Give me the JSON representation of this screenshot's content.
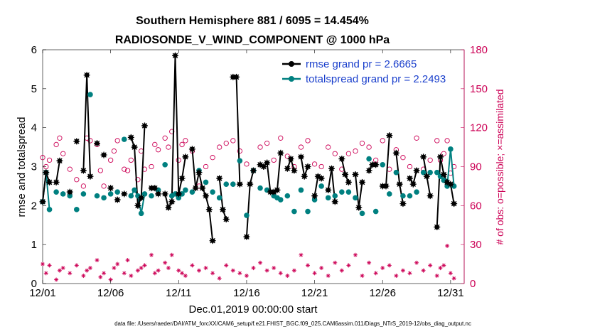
{
  "chart_data": {
    "type": "scatter",
    "title_line1": "Southern Hemisphere 881 / 6095 = 14.454%",
    "title_line2": "RADIOSONDE_V_WIND_COMPONENT @ 1000 hPa",
    "xlabel": "Dec.01,2019 00:00:00 start",
    "ylabel_left": "rmse and totalspread",
    "ylabel_right": "# of obs: o=possible; ×=assimilated",
    "footer": "data file: /Users/raeder/DAI/ATM_forcXX/CAM6_setup/f.e21.FHIST_BGC.f09_025.CAM6assim.011/Diags_NTrS_2019-12/obs_diag_output.nc",
    "xlim": [
      1,
      32
    ],
    "ylim_left": [
      0,
      6
    ],
    "ylim_right": [
      0,
      180
    ],
    "xtick_values": [
      1,
      6,
      11,
      16,
      21,
      26,
      31
    ],
    "xtick_labels": [
      "12/01",
      "12/06",
      "12/11",
      "12/16",
      "12/21",
      "12/26",
      "12/31"
    ],
    "ytick_left": [
      "0",
      "1",
      "2",
      "3",
      "4",
      "5",
      "6"
    ],
    "ytick_right": [
      "0",
      "30",
      "60",
      "90",
      "120",
      "150",
      "180"
    ],
    "legend": [
      {
        "name": "rmse grand pr = 2.6665",
        "color": "#000000"
      },
      {
        "name": "totalspread grand pr = 2.2493",
        "color": "#008080"
      }
    ],
    "series": [
      {
        "name": "rmse",
        "color": "#000000",
        "x": [
          1.0,
          1.25,
          1.5,
          2.0,
          2.25,
          3.0,
          3.5,
          4.0,
          4.25,
          4.5,
          5.0,
          5.5,
          6.0,
          6.5,
          7.0,
          7.5,
          7.75,
          8.0,
          8.25,
          8.5,
          9.0,
          9.25,
          9.5,
          10.0,
          10.25,
          10.5,
          10.75,
          11.0,
          11.25,
          11.5,
          12.0,
          12.25,
          12.5,
          12.75,
          13.0,
          13.25,
          13.5,
          14.0,
          14.25,
          14.5,
          15.0,
          15.25,
          15.5,
          16.0,
          16.25,
          16.5,
          17.0,
          17.25,
          17.5,
          17.75,
          18.0,
          18.25,
          18.5,
          19.0,
          19.25,
          19.5,
          20.0,
          20.25,
          20.5,
          21.0,
          21.25,
          21.5,
          22.0,
          22.25,
          22.5,
          23.0,
          23.25,
          23.5,
          24.0,
          24.25,
          24.5,
          25.0,
          25.25,
          25.5,
          26.0,
          26.25,
          26.5,
          27.0,
          27.25,
          27.5,
          28.0,
          28.25,
          28.5,
          29.0,
          29.25,
          29.5,
          30.0,
          30.25,
          30.5,
          30.75,
          31.0,
          31.25
        ],
        "y": [
          2.1,
          2.85,
          2.6,
          2.6,
          3.15,
          2.35,
          3.65,
          2.9,
          5.35,
          2.75,
          3.6,
          3.3,
          2.45,
          2.15,
          2.3,
          3.75,
          3.5,
          2.0,
          2.2,
          4.05,
          2.45,
          2.45,
          2.3,
          2.3,
          1.95,
          2.1,
          5.85,
          2.3,
          2.7,
          3.25,
          3.45,
          2.45,
          2.85,
          2.45,
          2.25,
          1.9,
          1.1,
          2.7,
          1.9,
          1.65,
          5.3,
          5.3,
          2.55,
          1.2,
          2.55,
          2.9,
          3.05,
          3.0,
          3.1,
          2.35,
          2.35,
          2.4,
          3.35,
          2.95,
          3.2,
          2.9,
          3.25,
          2.75,
          3.0,
          2.25,
          2.75,
          2.7,
          2.4,
          2.95,
          2.1,
          3.2,
          2.8,
          2.6,
          2.8,
          1.95,
          2.6,
          2.9,
          3.05,
          3.05,
          2.5,
          2.5,
          3.8,
          3.35,
          2.55,
          2.05,
          2.7,
          2.55,
          2.9,
          3.25,
          2.75,
          2.25,
          1.45,
          3.25,
          2.8,
          2.6,
          2.55,
          2.05
        ]
      },
      {
        "name": "totalspread",
        "color": "#008080",
        "x": [
          1.0,
          1.25,
          1.5,
          2.0,
          2.5,
          3.0,
          3.5,
          4.0,
          4.5,
          5.0,
          5.5,
          6.0,
          6.5,
          7.0,
          7.5,
          7.75,
          8.0,
          8.25,
          8.5,
          9.0,
          9.5,
          10.0,
          10.5,
          10.75,
          11.0,
          11.25,
          11.5,
          12.0,
          12.5,
          13.0,
          13.5,
          14.0,
          14.5,
          15.0,
          15.5,
          16.0,
          16.5,
          17.0,
          17.5,
          18.0,
          18.25,
          18.5,
          19.0,
          19.5,
          20.0,
          20.5,
          21.0,
          21.5,
          22.0,
          22.5,
          23.0,
          23.5,
          24.0,
          24.5,
          25.0,
          25.5,
          26.0,
          26.5,
          27.0,
          27.5,
          28.0,
          28.5,
          29.0,
          29.5,
          30.0,
          30.25,
          30.5,
          30.75,
          31.0,
          31.25
        ],
        "y": [
          2.1,
          2.85,
          1.9,
          2.35,
          2.3,
          2.25,
          1.9,
          2.3,
          4.85,
          2.25,
          2.2,
          2.3,
          2.35,
          3.7,
          2.25,
          2.4,
          2.25,
          1.8,
          2.3,
          2.25,
          2.4,
          3.05,
          2.25,
          2.3,
          2.2,
          2.3,
          2.4,
          2.35,
          2.9,
          2.6,
          2.35,
          2.2,
          2.55,
          2.55,
          3.15,
          1.75,
          2.9,
          2.45,
          2.4,
          2.25,
          2.2,
          2.15,
          2.25,
          1.85,
          2.4,
          1.85,
          2.15,
          2.5,
          2.2,
          2.25,
          2.35,
          2.35,
          2.2,
          1.8,
          3.2,
          1.85,
          3.05,
          2.3,
          2.85,
          2.25,
          2.25,
          2.35,
          2.85,
          2.85,
          2.85,
          2.75,
          2.65,
          2.5,
          3.45,
          2.5
        ]
      },
      {
        "name": "obs possible",
        "color": "#cc0055",
        "axis": "right",
        "x": [
          1.0,
          1.25,
          1.5,
          2.0,
          2.25,
          2.5,
          3.0,
          3.5,
          4.0,
          4.25,
          4.5,
          5.0,
          5.25,
          5.5,
          6.0,
          6.25,
          6.5,
          7.0,
          7.25,
          7.5,
          8.0,
          8.25,
          8.5,
          9.0,
          9.25,
          9.5,
          10.0,
          10.25,
          10.5,
          11.0,
          11.25,
          11.5,
          12.0,
          12.5,
          13.0,
          13.5,
          14.0,
          14.5,
          15.0,
          15.5,
          16.0,
          16.5,
          17.0,
          17.5,
          18.0,
          18.5,
          19.0,
          19.5,
          20.0,
          20.5,
          21.0,
          21.5,
          22.0,
          22.5,
          23.0,
          23.5,
          24.0,
          24.5,
          25.0,
          25.5,
          26.0,
          26.5,
          27.0,
          27.5,
          28.0,
          28.5,
          29.0,
          29.5,
          30.0,
          30.25,
          30.5,
          30.75,
          31.0,
          31.25
        ],
        "y": [
          97,
          90,
          95,
          107,
          112,
          100,
          88,
          80,
          75,
          112,
          110,
          107,
          87,
          75,
          95,
          102,
          110,
          88,
          87,
          95,
          80,
          102,
          88,
          90,
          107,
          103,
          112,
          105,
          117,
          95,
          107,
          110,
          102,
          75,
          90,
          97,
          105,
          108,
          110,
          102,
          92,
          87,
          105,
          108,
          95,
          112,
          98,
          90,
          105,
          110,
          92,
          90,
          105,
          100,
          88,
          100,
          102,
          108,
          105,
          95,
          110,
          88,
          103,
          97,
          90,
          112,
          88,
          95,
          110,
          95,
          100,
          110,
          85,
          90
        ]
      },
      {
        "name": "obs assimilated",
        "color": "#cc0055",
        "axis": "right",
        "x": [
          1.0,
          1.25,
          1.5,
          2.0,
          2.25,
          2.5,
          3.0,
          3.5,
          4.0,
          4.25,
          4.5,
          5.0,
          5.25,
          5.5,
          6.0,
          6.25,
          6.5,
          7.0,
          7.25,
          7.5,
          8.0,
          8.25,
          8.5,
          9.0,
          9.25,
          9.5,
          10.0,
          10.25,
          10.5,
          11.0,
          11.25,
          11.5,
          12.0,
          12.5,
          13.0,
          13.5,
          14.0,
          14.5,
          15.0,
          15.5,
          16.0,
          16.5,
          17.0,
          17.5,
          18.0,
          18.5,
          19.0,
          19.5,
          20.0,
          20.5,
          21.0,
          21.5,
          22.0,
          22.5,
          23.0,
          23.5,
          24.0,
          24.5,
          25.0,
          25.5,
          26.0,
          26.5,
          27.0,
          27.5,
          28.0,
          28.5,
          29.0,
          29.5,
          30.0,
          30.25,
          30.5,
          30.75,
          31.0,
          31.25
        ],
        "y": [
          15,
          8,
          14,
          3,
          10,
          12,
          8,
          14,
          6,
          10,
          12,
          18,
          5,
          8,
          3,
          12,
          15,
          8,
          18,
          6,
          10,
          12,
          14,
          22,
          8,
          10,
          16,
          12,
          22,
          10,
          8,
          6,
          14,
          10,
          12,
          8,
          4,
          14,
          10,
          8,
          6,
          12,
          16,
          10,
          12,
          8,
          6,
          10,
          22,
          14,
          8,
          12,
          6,
          16,
          10,
          14,
          22,
          6,
          16,
          8,
          12,
          14,
          6,
          10,
          8,
          16,
          10,
          14,
          6,
          12,
          14,
          29,
          8,
          4
        ]
      }
    ]
  }
}
